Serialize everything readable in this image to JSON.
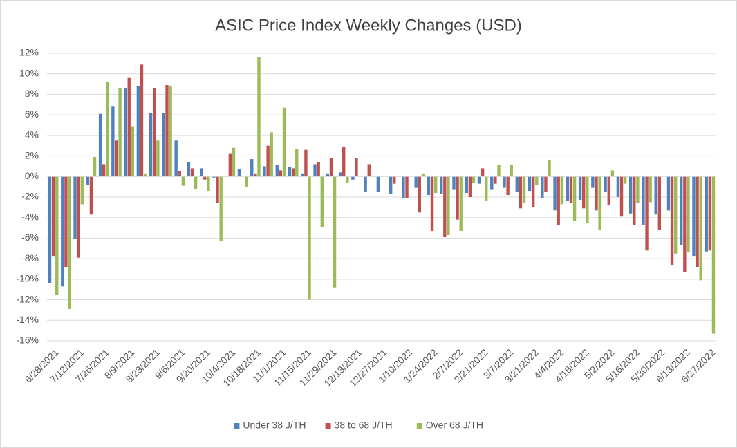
{
  "chart_data": {
    "type": "bar",
    "title": "ASIC Price Index Weekly Changes (USD)",
    "categories": [
      "6/28/2021",
      null,
      "7/12/2021",
      null,
      "7/26/2021",
      null,
      "8/9/2021",
      null,
      "8/23/2021",
      null,
      "9/6/2021",
      null,
      "9/20/2021",
      null,
      "10/4/2021",
      null,
      "10/18/2021",
      null,
      "11/1/2021",
      null,
      "11/15/2021",
      null,
      "11/29/2021",
      null,
      "12/13/2021",
      null,
      "12/27/2021",
      null,
      "1/10/2022",
      null,
      "1/24/2022",
      null,
      "2/7/2022",
      null,
      "2/21/2022",
      null,
      "3/7/2022",
      null,
      "3/21/2022",
      null,
      "4/4/2022",
      null,
      "4/18/2022",
      null,
      "5/2/2022",
      null,
      "5/16/2022",
      null,
      "5/30/2022",
      null,
      "6/13/2022",
      null,
      "6/27/2022"
    ],
    "series": [
      {
        "name": "Under 38 J/TH",
        "color": "#4f81bd",
        "values": [
          -10.4,
          -10.7,
          -6.1,
          -0.8,
          6.1,
          6.8,
          8.6,
          8.8,
          6.2,
          6.2,
          3.5,
          1.4,
          0.8,
          -0.1,
          0,
          0.7,
          1.7,
          1.0,
          1.1,
          0.9,
          0.3,
          1.2,
          0.3,
          0.4,
          -0.3,
          -1.5,
          -1.5,
          -1.7,
          -2.1,
          -1.1,
          -1.8,
          -1.7,
          -1.3,
          -1.6,
          -0.7,
          -1.3,
          -1.1,
          -1.5,
          -1.4,
          -2.1,
          -3.3,
          -2.4,
          -2.3,
          -1.1,
          -1.5,
          -2.0,
          -3.6,
          -4.7,
          -3.7,
          -3.3,
          -6.7,
          -7.8,
          -7.3
        ]
      },
      {
        "name": "38 to 68 J/TH",
        "color": "#c0504d",
        "values": [
          -7.8,
          -8.8,
          -7.9,
          -3.7,
          1.2,
          3.5,
          9.6,
          10.9,
          8.6,
          8.9,
          0.5,
          0.8,
          -0.3,
          -2.6,
          2.2,
          0,
          0.3,
          3.0,
          0.6,
          0.8,
          2.6,
          1.4,
          1.8,
          2.9,
          1.8,
          1.2,
          0,
          -0.7,
          -2.1,
          -3.5,
          -5.3,
          -5.9,
          -4.2,
          -2.0,
          0.8,
          -0.7,
          -1.8,
          -3.1,
          -3.0,
          -1.5,
          -4.7,
          -2.6,
          -3.1,
          -3.3,
          -2.8,
          -3.9,
          -4.7,
          -7.2,
          -5.2,
          -8.6,
          -9.3,
          -8.8,
          -7.2
        ]
      },
      {
        "name": "Over 68 J/TH",
        "color": "#9bbb59",
        "values": [
          -11.5,
          -12.9,
          -2.7,
          1.9,
          9.2,
          8.6,
          4.9,
          0.3,
          3.5,
          8.8,
          -0.9,
          -1.2,
          -1.4,
          -6.3,
          2.8,
          -1.0,
          11.6,
          4.3,
          6.7,
          2.7,
          -12.0,
          -4.9,
          -10.8,
          -0.6,
          0,
          0,
          0,
          0,
          0,
          0.3,
          -1.6,
          -5.7,
          -5.3,
          -0.6,
          -2.4,
          1.1,
          1.1,
          -2.6,
          -0.8,
          1.6,
          -2.7,
          -4.3,
          -4.5,
          -5.2,
          0.6,
          -0.7,
          -2.6,
          -2.5,
          0,
          -7.5,
          -7.4,
          -10.1,
          -15.3
        ]
      }
    ],
    "ylim": [
      -16,
      12
    ],
    "yticks": [
      {
        "value": -16,
        "label": "-16%"
      },
      {
        "value": -14,
        "label": "-14%"
      },
      {
        "value": -12,
        "label": "-12%"
      },
      {
        "value": -10,
        "label": "-10%"
      },
      {
        "value": -8,
        "label": "-8%"
      },
      {
        "value": -6,
        "label": "-6%"
      },
      {
        "value": -4,
        "label": "-4%"
      },
      {
        "value": -2,
        "label": "-2%"
      },
      {
        "value": 0,
        "label": "0%"
      },
      {
        "value": 2,
        "label": "2%"
      },
      {
        "value": 4,
        "label": "4%"
      },
      {
        "value": 6,
        "label": "6%"
      },
      {
        "value": 8,
        "label": "8%"
      },
      {
        "value": 10,
        "label": "10%"
      },
      {
        "value": 12,
        "label": "12%"
      }
    ],
    "grid": true,
    "legend": "bottom"
  }
}
